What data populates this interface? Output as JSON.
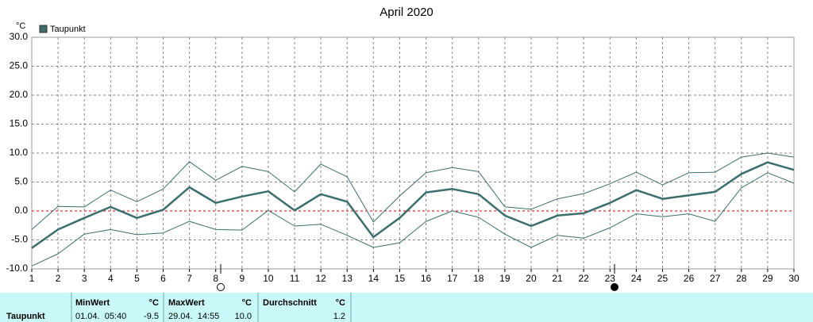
{
  "chart_data": {
    "type": "line",
    "title": "April 2020",
    "y_label": "°C",
    "x": [
      1,
      2,
      3,
      4,
      5,
      6,
      7,
      8,
      9,
      10,
      11,
      12,
      13,
      14,
      15,
      16,
      17,
      18,
      19,
      20,
      21,
      22,
      23,
      24,
      25,
      26,
      27,
      28,
      29,
      30
    ],
    "xlim": [
      1,
      30
    ],
    "xticks": [
      1,
      2,
      3,
      4,
      5,
      6,
      7,
      8,
      9,
      10,
      11,
      12,
      13,
      14,
      15,
      16,
      17,
      18,
      19,
      20,
      21,
      22,
      23,
      24,
      25,
      26,
      27,
      28,
      29,
      30
    ],
    "ylim": [
      -10,
      30
    ],
    "yticks": [
      {
        "value": -10,
        "label": "-10.0"
      },
      {
        "value": -5,
        "label": "-5.0"
      },
      {
        "value": 0,
        "label": "0.0"
      },
      {
        "value": 5,
        "label": "5.0"
      },
      {
        "value": 10,
        "label": "10.0"
      },
      {
        "value": 15,
        "label": "15.0"
      },
      {
        "value": 20,
        "label": "20.0"
      },
      {
        "value": 25,
        "label": "25.0"
      },
      {
        "value": 30,
        "label": "30.0"
      }
    ],
    "grid": true,
    "zero_line": {
      "value": 0,
      "color": "#dd0000"
    },
    "series": [
      {
        "name": "Taupunkt",
        "color": "#3c6e6e",
        "values": [
          -6.4,
          -3.2,
          -1.2,
          0.7,
          -1.2,
          0.2,
          4.1,
          1.4,
          2.5,
          3.4,
          0.1,
          2.9,
          1.6,
          -4.5,
          -1.2,
          3.2,
          3.8,
          2.9,
          -0.8,
          -2.6,
          -0.8,
          -0.4,
          1.4,
          3.6,
          2.1,
          2.7,
          3.3,
          6.4,
          8.4,
          7.1
        ],
        "max": [
          -3.2,
          0.8,
          0.7,
          3.6,
          1.6,
          3.8,
          8.5,
          5.3,
          7.7,
          6.8,
          3.3,
          8.1,
          5.9,
          -1.9,
          2.6,
          6.6,
          7.5,
          6.8,
          0.7,
          0.3,
          2.1,
          3.0,
          4.7,
          6.7,
          4.5,
          6.6,
          6.7,
          9.3,
          10.0,
          9.3
        ],
        "min": [
          -9.5,
          -7.4,
          -4.0,
          -3.2,
          -4.1,
          -3.8,
          -1.8,
          -3.2,
          -3.3,
          0.1,
          -2.6,
          -2.3,
          -4.2,
          -6.3,
          -5.5,
          -1.8,
          0.0,
          -1.1,
          -4.0,
          -6.3,
          -4.2,
          -4.7,
          -2.9,
          -0.5,
          -1.0,
          -0.5,
          -1.8,
          4.0,
          6.6,
          4.8
        ]
      }
    ]
  },
  "table": {
    "row_label": "Taupunkt",
    "headers": [
      "MinWert",
      "°C",
      "MaxWert",
      "°C",
      "Durchschnitt",
      "°C"
    ],
    "cells": [
      "01.04.  05:40",
      "-9.5",
      "29.04.  14:55",
      "10.0",
      "",
      "1.2"
    ]
  }
}
